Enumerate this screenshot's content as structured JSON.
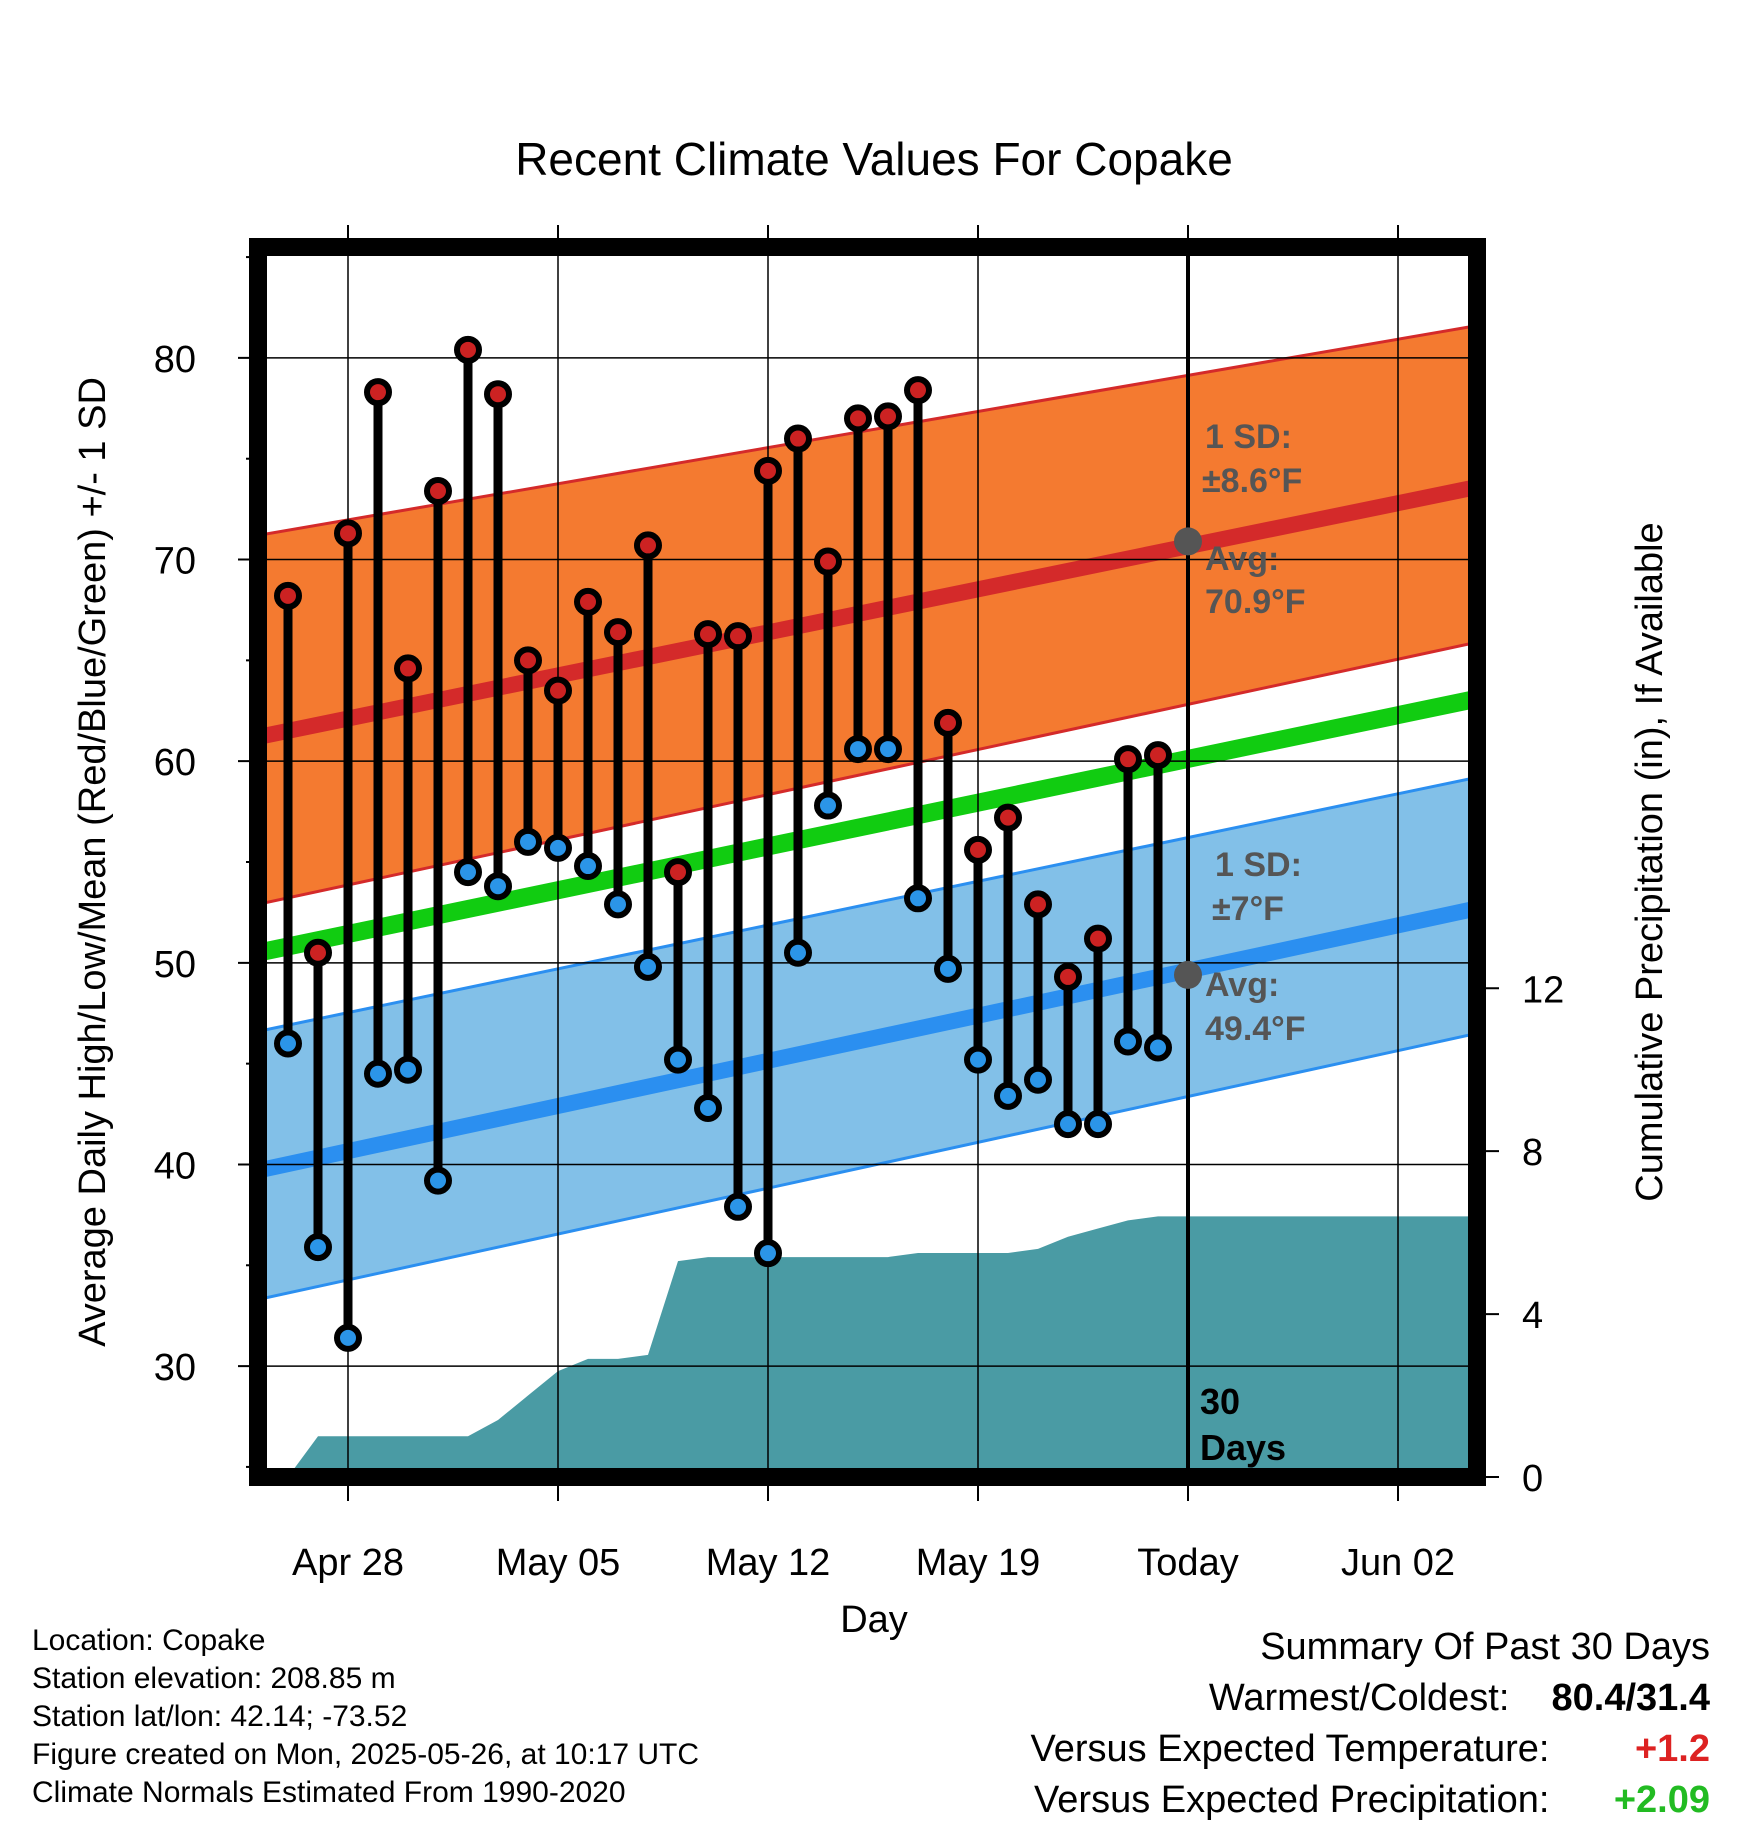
{
  "chart_data": {
    "type": "line",
    "title": "Recent Climate Values For Copake",
    "xlabel": "Day",
    "ylabel": "Average Daily High/Low/Mean (Red/Blue/Green) +/- 1 SD",
    "y2label": "Cumulative Precipitation (in), If Available",
    "ylim": [
      24.5,
      85.5
    ],
    "y2lim": [
      0,
      30.2
    ],
    "yticks": [
      "30",
      "40",
      "50",
      "60",
      "70",
      "80"
    ],
    "y2ticks": [
      "0",
      "4",
      "8",
      "12"
    ],
    "xticks": [
      "Apr 28",
      "May 05",
      "May 12",
      "May 19",
      "Today",
      "Jun 02"
    ],
    "grid": true,
    "x": [
      "Apr 26",
      "Apr 27",
      "Apr 28",
      "Apr 29",
      "Apr 30",
      "May 01",
      "May 02",
      "May 03",
      "May 04",
      "May 05",
      "May 06",
      "May 07",
      "May 08",
      "May 09",
      "May 10",
      "May 11",
      "May 12",
      "May 13",
      "May 14",
      "May 15",
      "May 16",
      "May 17",
      "May 18",
      "May 19",
      "May 20",
      "May 21",
      "May 22",
      "May 23",
      "May 24",
      "May 25"
    ],
    "series": [
      {
        "name": "High",
        "color": "#cc2222",
        "values": [
          68.2,
          50.5,
          71.3,
          78.3,
          64.6,
          73.4,
          80.4,
          78.2,
          65.0,
          63.5,
          67.9,
          66.4,
          70.7,
          54.5,
          66.3,
          66.2,
          74.4,
          76.0,
          69.9,
          77.0,
          77.1,
          78.4,
          61.9,
          55.6,
          57.2,
          52.9,
          49.3,
          51.2,
          60.1,
          60.3
        ]
      },
      {
        "name": "Low",
        "color": "#2b95e8",
        "values": [
          46.0,
          35.9,
          31.4,
          44.5,
          44.7,
          39.2,
          54.5,
          53.8,
          56.0,
          55.7,
          54.8,
          52.9,
          49.8,
          45.2,
          42.8,
          37.9,
          35.6,
          50.5,
          57.8,
          60.6,
          60.6,
          53.2,
          49.7,
          45.2,
          43.4,
          44.2,
          42.0,
          42.0,
          46.1,
          45.8
        ]
      }
    ],
    "normals": {
      "dates": [
        "Apr 25",
        "Jun 05"
      ],
      "avg_high": [
        61.2,
        73.6
      ],
      "avg_low": [
        39.7,
        52.7
      ],
      "avg_mean": [
        50.5,
        63.1
      ],
      "high_sd_band": [
        [
          52.9,
          71.2
        ],
        [
          65.9,
          81.6
        ]
      ],
      "low_sd_band": [
        [
          33.3,
          46.6
        ],
        [
          46.5,
          59.2
        ]
      ]
    },
    "cumulative_precip_in": [
      0.0,
      1.0,
      1.0,
      1.0,
      1.0,
      1.0,
      1.0,
      1.4,
      2.0,
      2.6,
      2.9,
      2.9,
      3.0,
      5.3,
      5.4,
      5.4,
      5.4,
      5.4,
      5.4,
      5.4,
      5.4,
      5.5,
      5.5,
      5.5,
      5.5,
      5.6,
      5.9,
      6.1,
      6.3,
      6.4
    ],
    "today_high_avg": 70.9,
    "today_low_avg": 49.4,
    "annotations": {
      "high_sd_label": "1 SD:",
      "high_sd_value": "±8.6°F",
      "high_avg_label": "Avg:",
      "high_avg_value": "70.9°F",
      "low_sd_label": "1 SD:",
      "low_sd_value": "±7°F",
      "low_avg_label": "Avg:",
      "low_avg_value": "49.4°F",
      "days_number": "30",
      "days_word": "Days"
    },
    "colors": {
      "high_band": "#f47a30",
      "high_line": "#d42a2a",
      "low_band": "#82c0e8",
      "low_line": "#2b8ff0",
      "mean_line": "#11cc11",
      "precip_fill": "#4a9ba4",
      "annotation_text": "#555555"
    }
  },
  "footer": {
    "location": "Location: Copake",
    "elevation": "Station elevation: 208.85 m",
    "latlon": "Station lat/lon: 42.14; -73.52",
    "created": "Figure created on Mon, 2025-05-26, at 10:17 UTC",
    "normals": "Climate Normals Estimated From 1990-2020"
  },
  "summary": {
    "heading": "Summary Of Past 30 Days",
    "warm_cold_label": "Warmest/Coldest:",
    "warm_cold_value": "80.4/31.4",
    "temp_label": "Versus Expected Temperature:",
    "temp_value": "+1.2",
    "temp_color": "#dd2222",
    "precip_label": "Versus Expected Precipitation:",
    "precip_value": "+2.09",
    "precip_color": "#22bb22"
  }
}
